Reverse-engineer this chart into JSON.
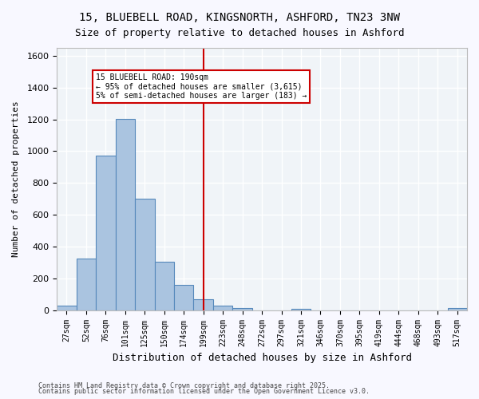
{
  "title1": "15, BLUEBELL ROAD, KINGSNORTH, ASHFORD, TN23 3NW",
  "title2": "Size of property relative to detached houses in Ashford",
  "xlabel": "Distribution of detached houses by size in Ashford",
  "ylabel": "Number of detached properties",
  "bar_labels": [
    "27sqm",
    "52sqm",
    "76sqm",
    "101sqm",
    "125sqm",
    "150sqm",
    "174sqm",
    "199sqm",
    "223sqm",
    "248sqm",
    "272sqm",
    "297sqm",
    "321sqm",
    "346sqm",
    "370sqm",
    "395sqm",
    "419sqm",
    "444sqm",
    "468sqm",
    "493sqm",
    "517sqm"
  ],
  "bar_values": [
    28,
    325,
    970,
    1205,
    700,
    305,
    160,
    70,
    28,
    15,
    0,
    0,
    10,
    0,
    0,
    0,
    0,
    0,
    0,
    0,
    13
  ],
  "bar_color": "#aac4e0",
  "bar_edgecolor": "#5588bb",
  "vline_x": 7.0,
  "vline_color": "#cc0000",
  "annotation_text": "15 BLUEBELL ROAD: 190sqm\n← 95% of detached houses are smaller (3,615)\n5% of semi-detached houses are larger (183) →",
  "annotation_box_edgecolor": "#cc0000",
  "ylim": [
    0,
    1650
  ],
  "yticks": [
    0,
    200,
    400,
    600,
    800,
    1000,
    1200,
    1400,
    1600
  ],
  "background_color": "#f0f4f8",
  "grid_color": "#ffffff",
  "footer1": "Contains HM Land Registry data © Crown copyright and database right 2025.",
  "footer2": "Contains public sector information licensed under the Open Government Licence v3.0."
}
